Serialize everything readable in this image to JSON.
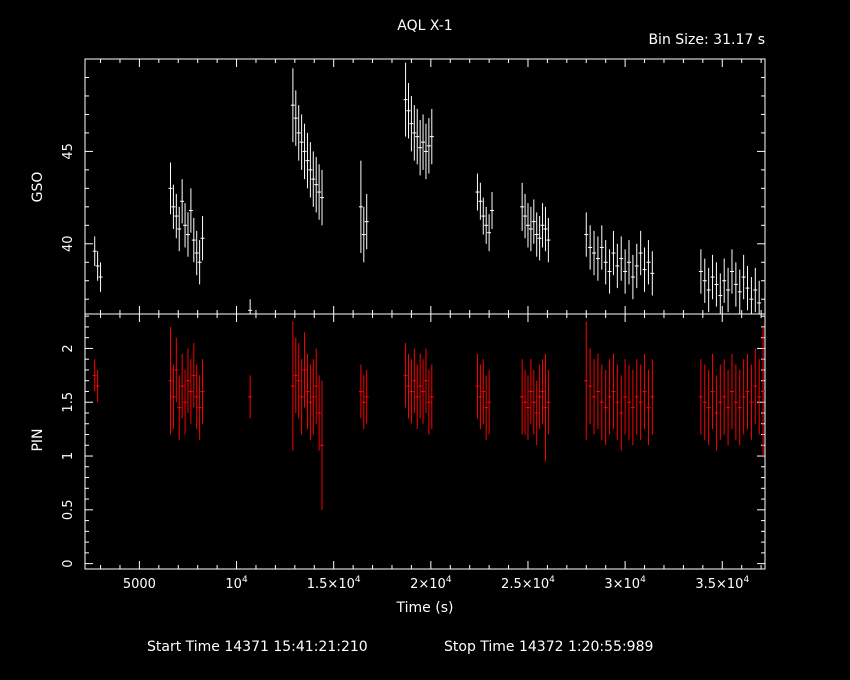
{
  "chart_data": [
    {
      "type": "scatter",
      "title": "AQL X-1",
      "subtitle": "Bin Size: 31.17 s",
      "xlabel": "",
      "ylabel": "GSO",
      "xlim": [
        2200,
        37200
      ],
      "ylim": [
        36.2,
        50
      ],
      "yticks": [
        40,
        45
      ],
      "color": "#ffffff",
      "series": [
        {
          "x": [
            2700,
            2850,
            3000,
            6600,
            6750,
            6900,
            7050,
            7200,
            7350,
            7500,
            7650,
            7800,
            7950,
            8100,
            8250,
            10700,
            12900,
            13050,
            13200,
            13350,
            13500,
            13650,
            13800,
            13950,
            14100,
            14250,
            14400,
            16400,
            16550,
            16700,
            18700,
            18850,
            19000,
            19150,
            19300,
            19450,
            19600,
            19750,
            19900,
            20050,
            22400,
            22550,
            22700,
            22850,
            23000,
            23150,
            24700,
            24850,
            25000,
            25150,
            25300,
            25450,
            25600,
            25750,
            25900,
            26050,
            28000,
            28200,
            28400,
            28600,
            28800,
            29000,
            29200,
            29400,
            29600,
            29800,
            30000,
            30200,
            30400,
            30600,
            30800,
            31000,
            31200,
            31400,
            33900,
            34100,
            34300,
            34500,
            34700,
            34900,
            35100,
            35300,
            35500,
            35700,
            35900,
            36100,
            36300,
            36500,
            36700,
            36900
          ],
          "y": [
            39.6,
            38.8,
            38.2,
            43.0,
            42.0,
            41.5,
            40.8,
            42.3,
            41.0,
            40.5,
            41.8,
            40.2,
            39.5,
            39.0,
            40.3,
            36.4,
            47.5,
            46.8,
            46.0,
            45.5,
            45.0,
            44.5,
            44.0,
            43.5,
            43.2,
            42.8,
            42.5,
            42.0,
            40.5,
            41.2,
            47.8,
            47.2,
            46.5,
            46.0,
            45.8,
            45.2,
            45.5,
            45.0,
            45.3,
            45.8,
            42.8,
            42.3,
            41.5,
            41.0,
            40.6,
            41.8,
            42.0,
            41.5,
            41.0,
            40.8,
            41.2,
            40.5,
            40.3,
            41.0,
            40.8,
            40.2,
            40.5,
            39.8,
            39.5,
            39.2,
            39.8,
            39.0,
            38.5,
            39.5,
            38.8,
            39.2,
            38.5,
            39.0,
            38.2,
            38.8,
            39.5,
            38.6,
            39.0,
            38.4,
            38.5,
            38.0,
            37.5,
            38.2,
            37.8,
            37.2,
            38.0,
            37.5,
            38.5,
            37.8,
            37.4,
            38.2,
            37.6,
            37.0,
            37.5,
            36.8
          ],
          "yerr": [
            0.8,
            0.8,
            0.8,
            1.4,
            1.2,
            1.2,
            1.2,
            1.2,
            1.2,
            1.2,
            1.2,
            1.2,
            1.2,
            1.2,
            1.2,
            0.6,
            2.0,
            1.5,
            1.5,
            1.5,
            1.5,
            1.5,
            1.5,
            1.5,
            1.5,
            1.5,
            1.5,
            2.5,
            1.5,
            1.5,
            2.0,
            1.5,
            1.5,
            1.5,
            1.5,
            1.5,
            1.5,
            1.5,
            1.5,
            1.5,
            1.0,
            1.0,
            1.0,
            1.0,
            1.0,
            1.0,
            1.3,
            1.2,
            1.2,
            1.2,
            1.2,
            1.2,
            1.2,
            1.2,
            1.2,
            1.2,
            1.2,
            1.2,
            1.2,
            1.2,
            1.2,
            1.2,
            1.2,
            1.2,
            1.2,
            1.2,
            1.2,
            1.2,
            1.2,
            1.2,
            1.2,
            1.2,
            1.2,
            1.2,
            1.2,
            1.2,
            1.2,
            1.2,
            1.2,
            1.2,
            1.2,
            1.2,
            1.2,
            1.2,
            1.2,
            1.2,
            1.2,
            1.2,
            1.2,
            1.2
          ]
        }
      ]
    },
    {
      "type": "scatter",
      "xlabel": "Time (s)",
      "ylabel": "PIN",
      "xlim": [
        2200,
        37200
      ],
      "ylim": [
        -0.05,
        2.32
      ],
      "yticks": [
        "0",
        "0.5",
        "1",
        "1.5",
        "2"
      ],
      "xtick_labels": [
        "5000",
        "10",
        "1.5×10",
        "2×10",
        "2.5×10",
        "3×10",
        "3.5×10"
      ],
      "xtick_exponent": "4",
      "color": "#ff0000",
      "series": [
        {
          "x": [
            2700,
            2850,
            6600,
            6750,
            6900,
            7050,
            7200,
            7350,
            7500,
            7650,
            7800,
            7950,
            8100,
            8250,
            10700,
            12900,
            13050,
            13200,
            13350,
            13500,
            13650,
            13800,
            13950,
            14100,
            14250,
            14400,
            16400,
            16550,
            16700,
            18700,
            18850,
            19000,
            19150,
            19300,
            19450,
            19600,
            19750,
            19900,
            20050,
            22400,
            22550,
            22700,
            22850,
            23000,
            24700,
            24850,
            25000,
            25150,
            25300,
            25450,
            25600,
            25750,
            25900,
            26050,
            28000,
            28200,
            28400,
            28600,
            28800,
            29000,
            29200,
            29400,
            29600,
            29800,
            30000,
            30200,
            30400,
            30600,
            30800,
            31000,
            31200,
            31400,
            33900,
            34100,
            34300,
            34500,
            34700,
            34900,
            35100,
            35300,
            35500,
            35700,
            35900,
            36100,
            36300,
            36500,
            36700,
            36900,
            37100
          ],
          "y": [
            1.75,
            1.65,
            1.7,
            1.55,
            1.8,
            1.45,
            1.65,
            1.5,
            1.7,
            1.6,
            1.75,
            1.55,
            1.45,
            1.6,
            1.55,
            1.65,
            1.75,
            1.7,
            1.55,
            1.8,
            1.6,
            1.5,
            1.55,
            1.65,
            1.4,
            1.1,
            1.6,
            1.5,
            1.55,
            1.75,
            1.65,
            1.6,
            1.7,
            1.55,
            1.65,
            1.6,
            1.7,
            1.5,
            1.55,
            1.65,
            1.55,
            1.6,
            1.45,
            1.5,
            1.55,
            1.5,
            1.45,
            1.6,
            1.5,
            1.4,
            1.55,
            1.6,
            1.45,
            1.5,
            1.7,
            1.65,
            1.55,
            1.6,
            1.5,
            1.45,
            1.55,
            1.6,
            1.5,
            1.4,
            1.55,
            1.5,
            1.45,
            1.55,
            1.5,
            1.6,
            1.45,
            1.55,
            1.55,
            1.5,
            1.45,
            1.6,
            1.4,
            1.5,
            1.55,
            1.45,
            1.6,
            1.5,
            1.45,
            1.55,
            1.6,
            1.5,
            1.65,
            1.55,
            1.6
          ],
          "yerr": [
            0.15,
            0.15,
            0.5,
            0.3,
            0.3,
            0.3,
            0.3,
            0.3,
            0.3,
            0.3,
            0.3,
            0.3,
            0.3,
            0.3,
            0.2,
            0.6,
            0.35,
            0.35,
            0.35,
            0.35,
            0.35,
            0.35,
            0.35,
            0.35,
            0.35,
            0.6,
            0.25,
            0.25,
            0.25,
            0.3,
            0.3,
            0.3,
            0.3,
            0.3,
            0.3,
            0.3,
            0.3,
            0.3,
            0.3,
            0.3,
            0.3,
            0.3,
            0.3,
            0.3,
            0.35,
            0.3,
            0.3,
            0.3,
            0.3,
            0.3,
            0.3,
            0.3,
            0.5,
            0.3,
            0.55,
            0.35,
            0.35,
            0.35,
            0.35,
            0.35,
            0.35,
            0.35,
            0.35,
            0.35,
            0.35,
            0.35,
            0.35,
            0.35,
            0.35,
            0.35,
            0.35,
            0.35,
            0.35,
            0.35,
            0.35,
            0.35,
            0.35,
            0.35,
            0.35,
            0.35,
            0.35,
            0.35,
            0.35,
            0.35,
            0.35,
            0.35,
            0.35,
            0.35,
            0.6
          ]
        }
      ]
    }
  ],
  "footer": {
    "start_label": "Start Time 14371 15:41:21:210",
    "stop_label": "Stop Time 14372  1:20:55:989"
  }
}
